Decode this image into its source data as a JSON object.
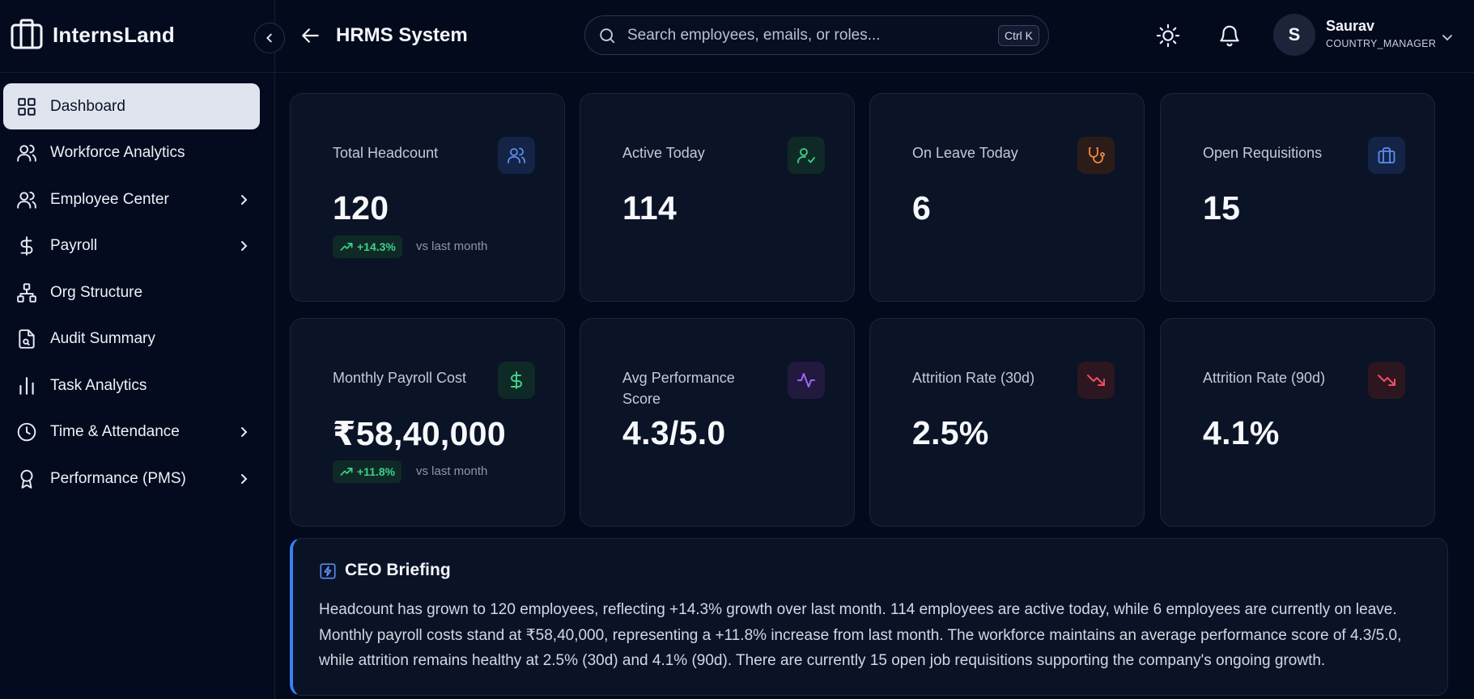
{
  "app": {
    "brand": "InternsLand",
    "page_title": "HRMS System"
  },
  "search": {
    "placeholder": "Search employees, emails, or roles...",
    "value": "",
    "shortcut": "Ctrl K"
  },
  "user": {
    "initial": "S",
    "name": "Saurav",
    "role": "COUNTRY_MANAGER"
  },
  "sidebar": {
    "items": [
      {
        "label": "Dashboard",
        "icon": "dashboard-grid-icon",
        "active": true,
        "has_submenu": false
      },
      {
        "label": "Workforce Analytics",
        "icon": "users-icon",
        "active": false,
        "has_submenu": false
      },
      {
        "label": "Employee Center",
        "icon": "users-icon",
        "active": false,
        "has_submenu": true
      },
      {
        "label": "Payroll",
        "icon": "dollar-icon",
        "active": false,
        "has_submenu": true
      },
      {
        "label": "Org Structure",
        "icon": "org-chart-icon",
        "active": false,
        "has_submenu": false
      },
      {
        "label": "Audit Summary",
        "icon": "file-search-icon",
        "active": false,
        "has_submenu": false
      },
      {
        "label": "Task Analytics",
        "icon": "bar-chart-icon",
        "active": false,
        "has_submenu": false
      },
      {
        "label": "Time & Attendance",
        "icon": "clock-icon",
        "active": false,
        "has_submenu": true
      },
      {
        "label": "Performance (PMS)",
        "icon": "award-icon",
        "active": false,
        "has_submenu": true
      }
    ]
  },
  "stats": [
    {
      "title": "Total Headcount",
      "value": "120",
      "icon": "users-icon",
      "icon_color": "#5b8def",
      "icon_bg": "#142447",
      "trend": "+14.3%",
      "trend_note": "vs last month"
    },
    {
      "title": "Active Today",
      "value": "114",
      "icon": "user-check-icon",
      "icon_color": "#3ed08a",
      "icon_bg": "#0f2a26"
    },
    {
      "title": "On Leave Today",
      "value": "6",
      "icon": "stethoscope-icon",
      "icon_color": "#f08a3c",
      "icon_bg": "#2c1c19"
    },
    {
      "title": "Open Requisitions",
      "value": "15",
      "icon": "briefcase-icon",
      "icon_color": "#5b8def",
      "icon_bg": "#142447"
    },
    {
      "title": "Monthly Payroll Cost",
      "value": "₹58,40,000",
      "icon": "dollar-icon",
      "icon_color": "#3ed08a",
      "icon_bg": "#0f2a26",
      "trend": "+11.8%",
      "trend_note": "vs last month"
    },
    {
      "title": "Avg Performance Score",
      "value": "4.3/5.0",
      "icon": "activity-icon",
      "icon_color": "#a064f5",
      "icon_bg": "#22193e"
    },
    {
      "title": "Attrition Rate (30d)",
      "value": "2.5%",
      "icon": "trending-down-icon",
      "icon_color": "#ef4f5f",
      "icon_bg": "#2c1620"
    },
    {
      "title": "Attrition Rate (90d)",
      "value": "4.1%",
      "icon": "trending-down-icon",
      "icon_color": "#ef4f5f",
      "icon_bg": "#2c1620"
    }
  ],
  "briefing": {
    "title": "CEO Briefing",
    "text": "Headcount has grown to 120 employees, reflecting +14.3% growth over last month. 114 employees are active today, while 6 employees are currently on leave. Monthly payroll costs stand at ₹58,40,000, representing a +11.8% increase from last month. The workforce maintains an average performance score of 4.3/5.0, while attrition remains healthy at 2.5% (30d) and 4.1% (90d). There are currently 15 open job requisitions supporting the company's ongoing growth."
  },
  "colors": {
    "accent": "#3a7ff3",
    "background": "#030a1c",
    "card": "#0b1326",
    "positive": "#3ed08a"
  }
}
